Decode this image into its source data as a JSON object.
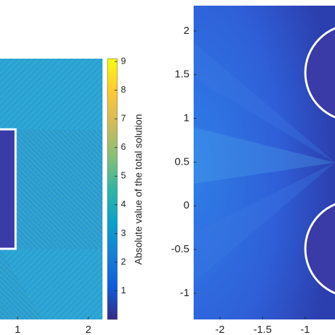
{
  "chart_data": [
    {
      "type": "heatmap",
      "xlim": [
        0.75,
        2.2
      ],
      "xticks": [
        1,
        2
      ],
      "colorbar": {
        "ylim": [
          0,
          9.1
        ],
        "yticks": [
          1,
          2,
          3,
          4,
          5,
          6,
          7,
          8,
          9
        ],
        "label": "Absolute value of the total solution",
        "colormap": [
          "#352a87",
          "#0f5cdd",
          "#1481d6",
          "#06a4ca",
          "#2eb7a4",
          "#87bf77",
          "#d1bb59",
          "#fec832",
          "#f9fb0e"
        ]
      }
    },
    {
      "type": "heatmap",
      "xlim": [
        -2.31,
        -0.65
      ],
      "ylim": [
        -1.3,
        2.29
      ],
      "xticks": [
        -2,
        -1.5,
        -1
      ],
      "yticks": [
        2,
        1.5,
        1,
        0.5,
        0,
        -0.5,
        -1
      ]
    }
  ]
}
